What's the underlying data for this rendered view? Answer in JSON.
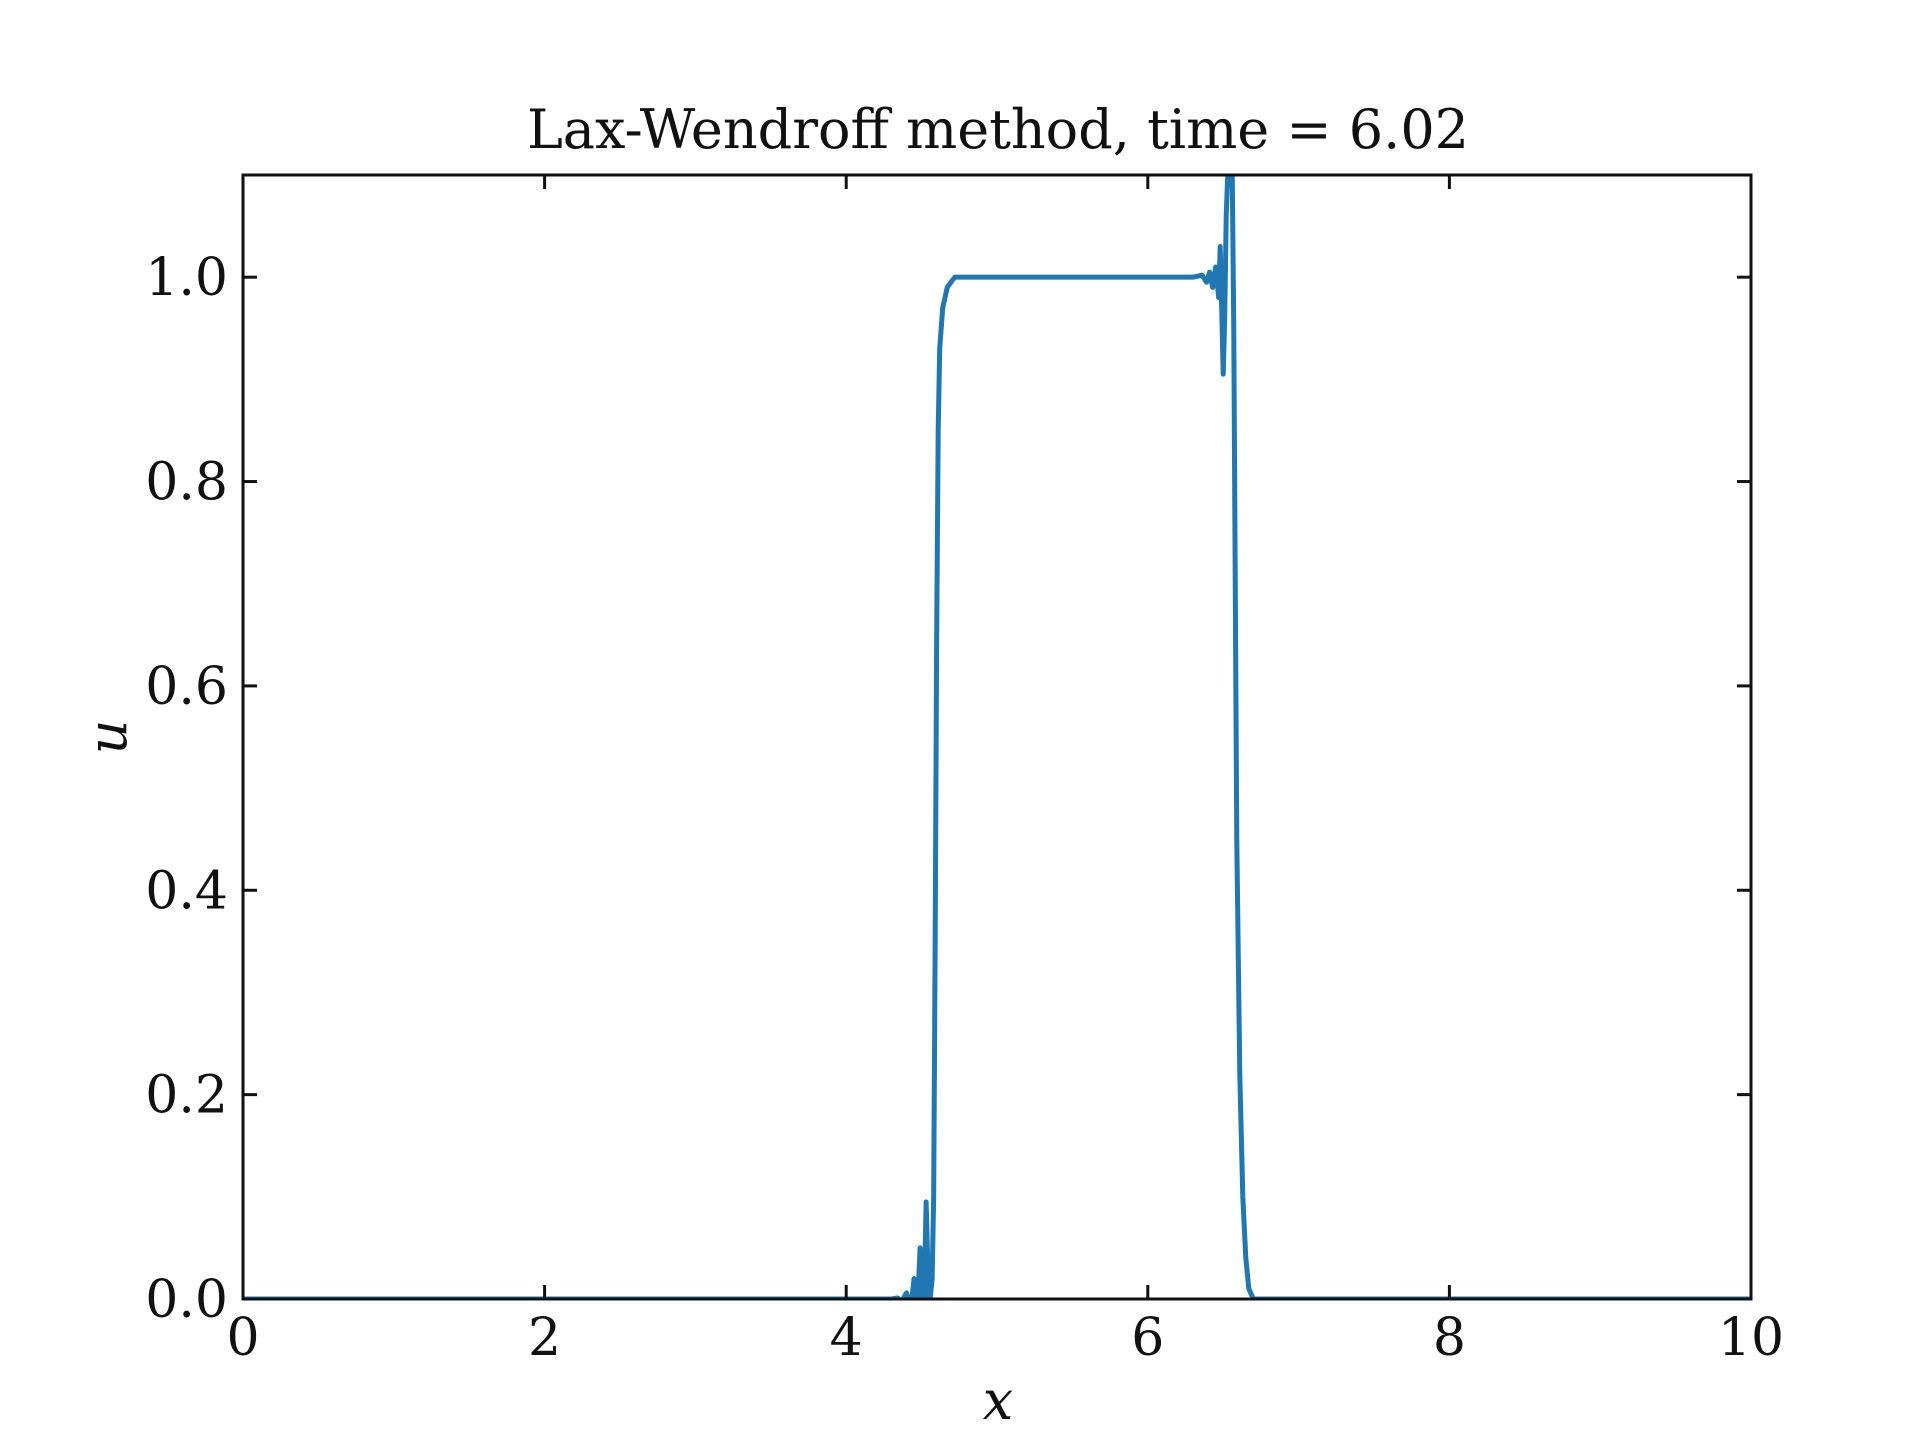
{
  "chart_data": {
    "type": "line",
    "title": "Lax-Wendroff method, time = 6.02",
    "xlabel": "x",
    "ylabel": "u",
    "xlim": [
      0,
      10
    ],
    "ylim": [
      0,
      1.1
    ],
    "x_ticks": [
      0,
      2,
      4,
      6,
      8,
      10
    ],
    "x_tick_labels": [
      "0",
      "2",
      "4",
      "6",
      "8",
      "10"
    ],
    "y_ticks": [
      0.0,
      0.2,
      0.4,
      0.6,
      0.8,
      1.0
    ],
    "y_tick_labels": [
      "0.0",
      "0.2",
      "0.4",
      "0.6",
      "0.8",
      "1.0"
    ],
    "grid": false,
    "legend": "none",
    "series": [
      {
        "color": "#1f77b4",
        "points": [
          [
            0.0,
            0.0
          ],
          [
            4.3,
            0.0
          ],
          [
            4.34,
            0.001
          ],
          [
            4.37,
            -0.002
          ],
          [
            4.4,
            0.006
          ],
          [
            4.43,
            -0.008
          ],
          [
            4.45,
            0.02
          ],
          [
            4.47,
            -0.02
          ],
          [
            4.49,
            0.05
          ],
          [
            4.51,
            -0.02
          ],
          [
            4.52,
            0.02
          ],
          [
            4.53,
            0.095
          ],
          [
            4.54,
            0.04
          ],
          [
            4.55,
            -0.01
          ],
          [
            4.57,
            0.02
          ],
          [
            4.58,
            0.1
          ],
          [
            4.59,
            0.35
          ],
          [
            4.6,
            0.65
          ],
          [
            4.61,
            0.85
          ],
          [
            4.62,
            0.93
          ],
          [
            4.64,
            0.97
          ],
          [
            4.67,
            0.99
          ],
          [
            4.72,
            1.0
          ],
          [
            6.3,
            1.0
          ],
          [
            6.36,
            1.002
          ],
          [
            6.39,
            0.995
          ],
          [
            6.41,
            1.005
          ],
          [
            6.43,
            0.99
          ],
          [
            6.45,
            1.01
          ],
          [
            6.47,
            0.98
          ],
          [
            6.48,
            1.03
          ],
          [
            6.49,
            0.97
          ],
          [
            6.5,
            0.905
          ],
          [
            6.51,
            0.96
          ],
          [
            6.52,
            1.06
          ],
          [
            6.53,
            1.1
          ],
          [
            6.55,
            1.15
          ],
          [
            6.56,
            1.1
          ],
          [
            6.57,
            0.95
          ],
          [
            6.58,
            0.7
          ],
          [
            6.59,
            0.45
          ],
          [
            6.61,
            0.22
          ],
          [
            6.63,
            0.1
          ],
          [
            6.65,
            0.04
          ],
          [
            6.67,
            0.01
          ],
          [
            6.7,
            0.0
          ],
          [
            10.0,
            0.0
          ]
        ]
      }
    ]
  }
}
